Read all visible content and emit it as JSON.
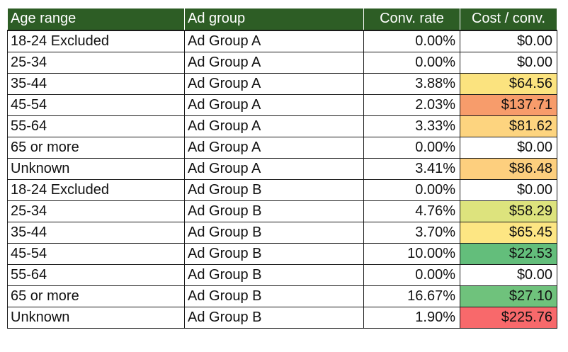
{
  "table": {
    "headers": [
      "Age range",
      "Ad group",
      "Conv. rate",
      "Cost / conv."
    ],
    "rows": [
      {
        "age": "18-24 Excluded",
        "group": "Ad Group A",
        "rate": "0.00%",
        "cost": "$0.00",
        "cost_color": "#ffffff"
      },
      {
        "age": "25-34",
        "group": "Ad Group A",
        "rate": "0.00%",
        "cost": "$0.00",
        "cost_color": "#ffffff"
      },
      {
        "age": "35-44",
        "group": "Ad Group A",
        "rate": "3.88%",
        "cost": "$64.56",
        "cost_color": "#fbe37f"
      },
      {
        "age": "45-54",
        "group": "Ad Group A",
        "rate": "2.03%",
        "cost": "$137.71",
        "cost_color": "#f79c6b"
      },
      {
        "age": "55-64",
        "group": "Ad Group A",
        "rate": "3.33%",
        "cost": "$81.62",
        "cost_color": "#fdd47f"
      },
      {
        "age": "65 or more",
        "group": "Ad Group A",
        "rate": "0.00%",
        "cost": "$0.00",
        "cost_color": "#ffffff"
      },
      {
        "age": "Unknown",
        "group": "Ad Group A",
        "rate": "3.41%",
        "cost": "$86.48",
        "cost_color": "#fdcf7e"
      },
      {
        "age": "18-24 Excluded",
        "group": "Ad Group B",
        "rate": "0.00%",
        "cost": "$0.00",
        "cost_color": "#ffffff"
      },
      {
        "age": "25-34",
        "group": "Ad Group B",
        "rate": "4.76%",
        "cost": "$58.29",
        "cost_color": "#dde37d"
      },
      {
        "age": "35-44",
        "group": "Ad Group B",
        "rate": "3.70%",
        "cost": "$65.45",
        "cost_color": "#fde683"
      },
      {
        "age": "45-54",
        "group": "Ad Group B",
        "rate": "10.00%",
        "cost": "$22.53",
        "cost_color": "#63be7b"
      },
      {
        "age": "55-64",
        "group": "Ad Group B",
        "rate": "0.00%",
        "cost": "$0.00",
        "cost_color": "#ffffff"
      },
      {
        "age": "65 or more",
        "group": "Ad Group B",
        "rate": "16.67%",
        "cost": "$27.10",
        "cost_color": "#6fc27c"
      },
      {
        "age": "Unknown",
        "group": "Ad Group B",
        "rate": "1.90%",
        "cost": "$225.76",
        "cost_color": "#f8696b"
      }
    ]
  }
}
